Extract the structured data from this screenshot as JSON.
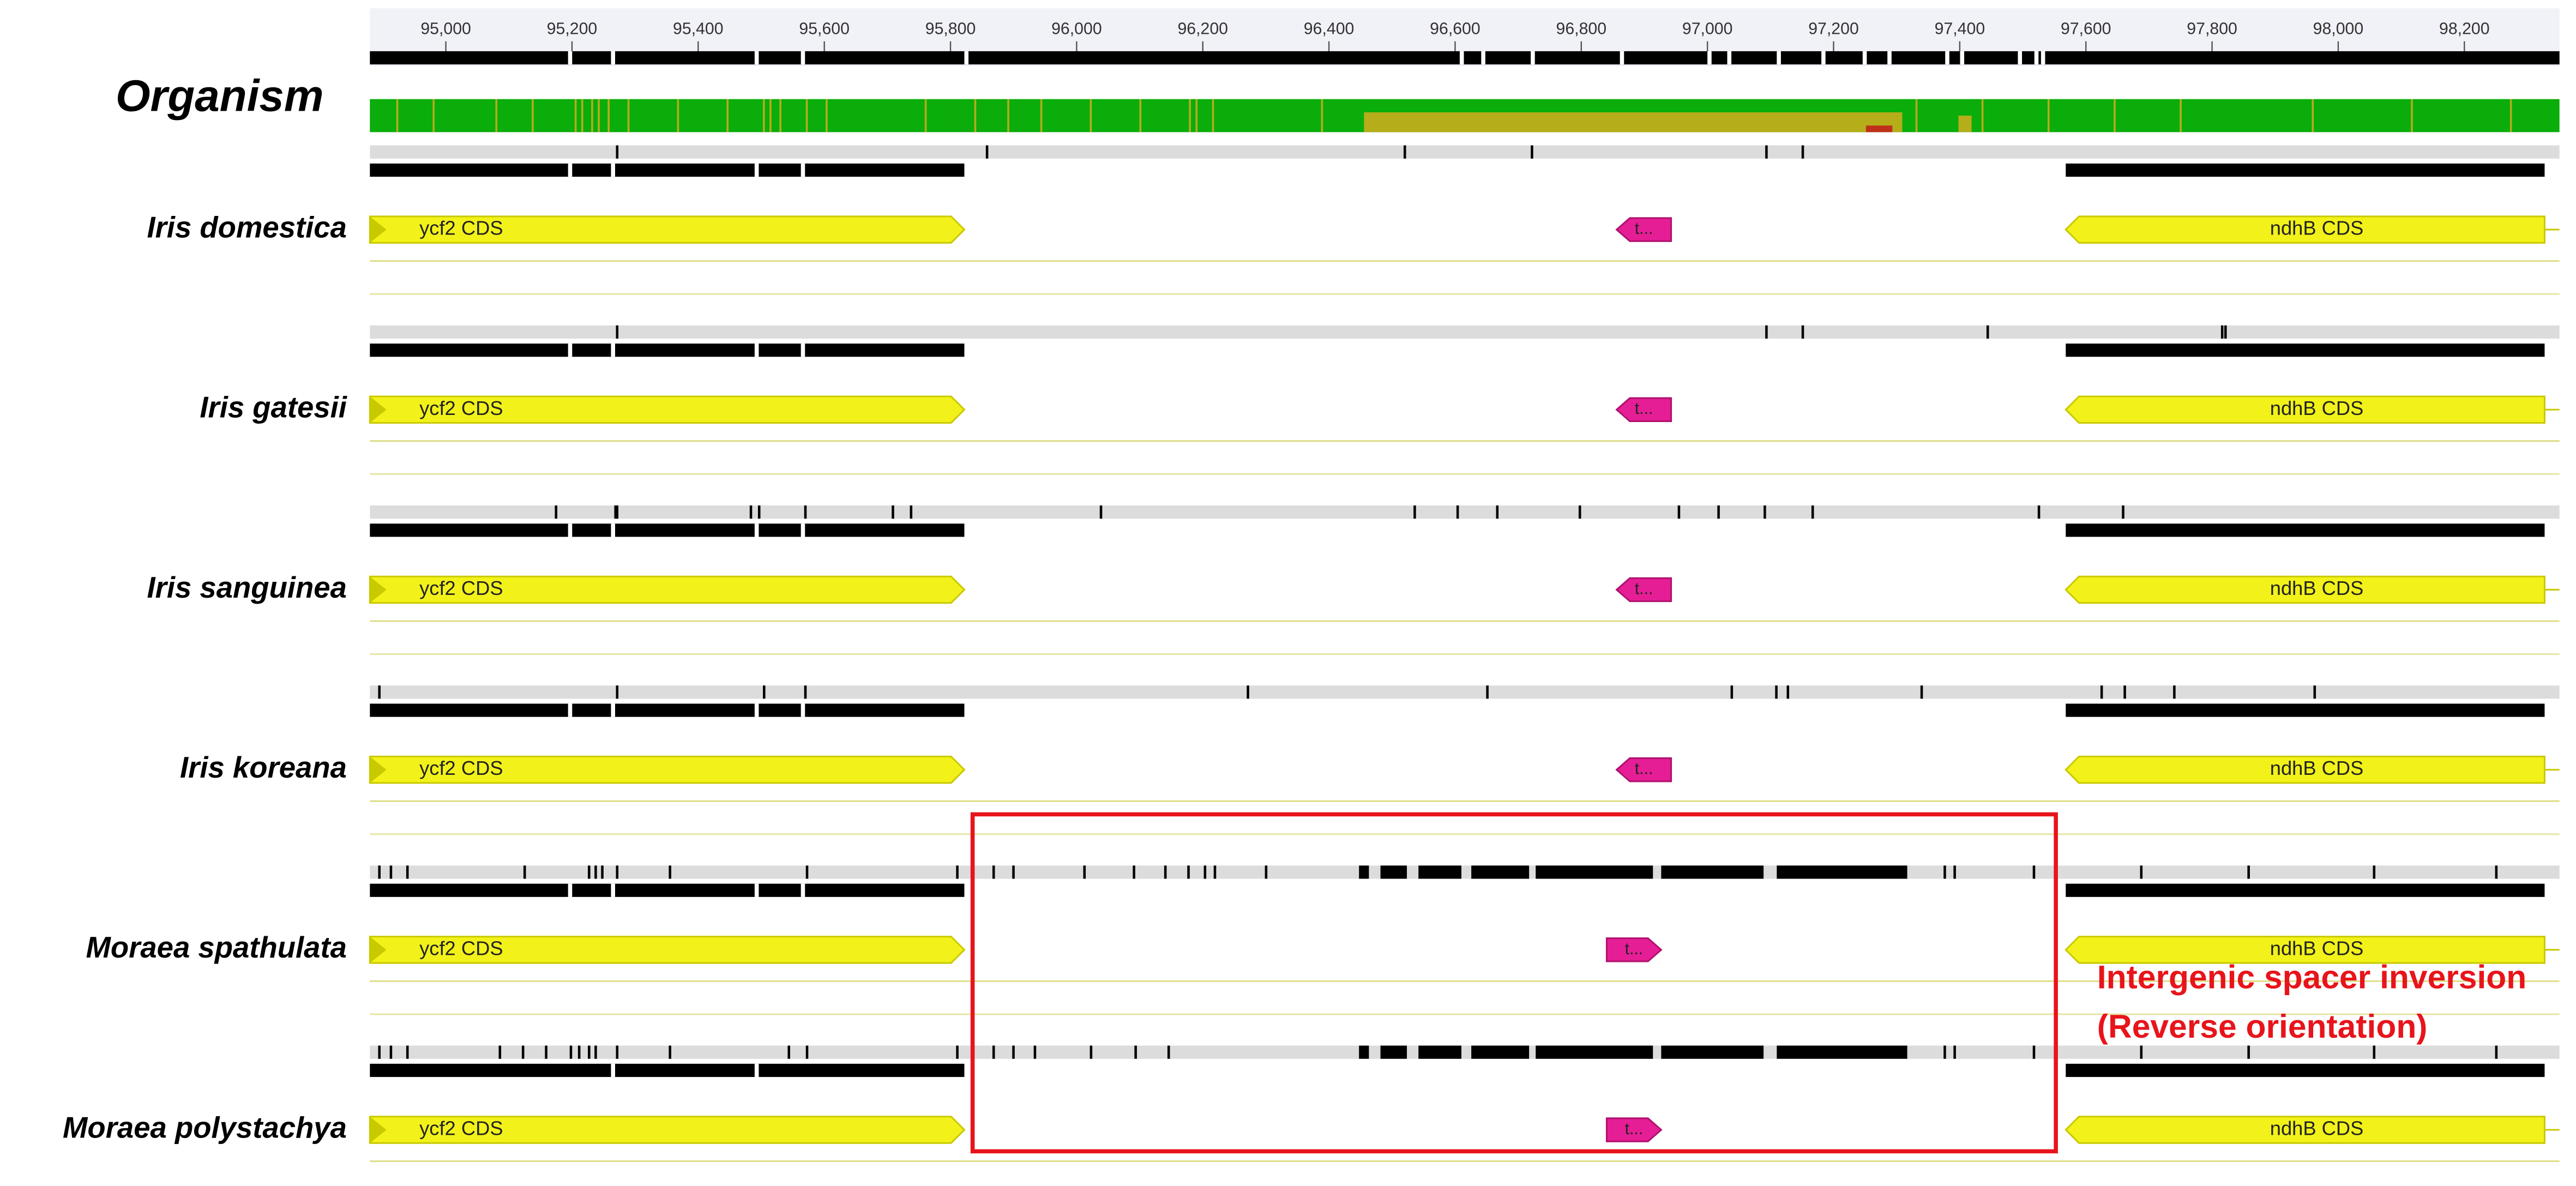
{
  "ruler": {
    "ticks": [
      {
        "value": 95000,
        "label": "95,000"
      },
      {
        "value": 95200,
        "label": "95,200"
      },
      {
        "value": 95400,
        "label": "95,400"
      },
      {
        "value": 95600,
        "label": "95,600"
      },
      {
        "value": 95800,
        "label": "95,800"
      },
      {
        "value": 96000,
        "label": "96,000"
      },
      {
        "value": 96200,
        "label": "96,200"
      },
      {
        "value": 96400,
        "label": "96,400"
      },
      {
        "value": 96600,
        "label": "96,600"
      },
      {
        "value": 96800,
        "label": "96,800"
      },
      {
        "value": 97000,
        "label": "97,000"
      },
      {
        "value": 97200,
        "label": "97,200"
      },
      {
        "value": 97400,
        "label": "97,400"
      },
      {
        "value": 97600,
        "label": "97,600"
      },
      {
        "value": 97800,
        "label": "97,800"
      },
      {
        "value": 98000,
        "label": "98,000"
      },
      {
        "value": 98200,
        "label": "98,200"
      }
    ]
  },
  "consensus": {
    "label": "Organism"
  },
  "tracks": [
    {
      "organism": "Iris domestica",
      "annotations": [
        {
          "label": "ycf2 CDS"
        },
        {
          "label": "t..."
        },
        {
          "label": "ndhB CDS"
        }
      ]
    },
    {
      "organism": "Iris gatesii",
      "annotations": [
        {
          "label": "ycf2 CDS"
        },
        {
          "label": "t..."
        },
        {
          "label": "ndhB CDS"
        }
      ]
    },
    {
      "organism": "Iris sanguinea",
      "annotations": [
        {
          "label": "ycf2 CDS"
        },
        {
          "label": "t..."
        },
        {
          "label": "ndhB CDS"
        }
      ]
    },
    {
      "organism": "Iris koreana",
      "annotations": [
        {
          "label": "ycf2 CDS"
        },
        {
          "label": "t..."
        },
        {
          "label": "ndhB CDS"
        }
      ]
    },
    {
      "organism": "Moraea spathulata",
      "annotations": [
        {
          "label": "ycf2 CDS"
        },
        {
          "label": "t..."
        },
        {
          "label": "ndhB CDS"
        }
      ]
    },
    {
      "organism": "Moraea polystachya",
      "annotations": [
        {
          "label": "ycf2 CDS"
        },
        {
          "label": "t..."
        },
        {
          "label": "ndhB CDS"
        }
      ]
    }
  ],
  "callout": {
    "lines": [
      "Intergenic spacer inversion",
      "(Reverse orientation)"
    ]
  }
}
